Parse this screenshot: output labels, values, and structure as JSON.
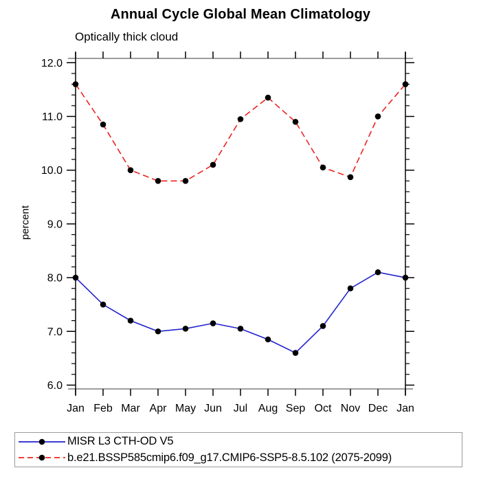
{
  "page": {
    "background": "#ffffff"
  },
  "header": {
    "title": "Annual Cycle Global Mean Climatology",
    "subtitle": "Optically thick cloud"
  },
  "axes": {
    "ylabel": "percent",
    "x_tick_labels": [
      "Jan",
      "Feb",
      "Mar",
      "Apr",
      "May",
      "Jun",
      "Jul",
      "Aug",
      "Sep",
      "Oct",
      "Nov",
      "Dec",
      "Jan"
    ],
    "y_tick_labels": [
      "6.0",
      "7.0",
      "8.0",
      "9.0",
      "10.0",
      "11.0",
      "12.0"
    ]
  },
  "legend": {
    "items": [
      {
        "label": "MISR L3 CTH-OD V5",
        "line_style": "solid",
        "color": "#2121cf",
        "marker": "filled-circle",
        "marker_color": "#000000"
      },
      {
        "label": "b.e21.BSSP585cmip6.f09_g17.CMIP6-SSP5-8.5.102 (2075-2099)",
        "line_style": "dashed",
        "color": "#ee2222",
        "marker": "filled-circle",
        "marker_color": "#000000"
      }
    ]
  },
  "colors": {
    "misr_line": "#2121cf",
    "model_line": "#ee2222",
    "marker": "#000000",
    "axis": "#000000",
    "plot_border": "#7d7d7d",
    "legend_border": "#9a9a9a"
  },
  "chart_data": {
    "type": "line",
    "title": "Annual Cycle Global Mean Climatology",
    "subtitle": "Optically thick cloud",
    "ylabel": "percent",
    "xlabel": "",
    "categories": [
      "Jan",
      "Feb",
      "Mar",
      "Apr",
      "May",
      "Jun",
      "Jul",
      "Aug",
      "Sep",
      "Oct",
      "Nov",
      "Dec",
      "Jan"
    ],
    "y_major_ticks": [
      6,
      7,
      8,
      9,
      10,
      11,
      12
    ],
    "y_tick_labels": [
      "6.0",
      "7.0",
      "8.0",
      "9.0",
      "10.0",
      "11.0",
      "12.0"
    ],
    "y_minor_step": 0.2,
    "ylim": [
      5.92,
      12.08
    ],
    "grid": false,
    "legend_position": "bottom-left-box",
    "series": [
      {
        "name": "MISR L3 CTH-OD V5",
        "color": "#2121cf",
        "line_style": "solid",
        "marker": "filled-circle",
        "marker_color": "#000000",
        "values": [
          8.0,
          7.5,
          7.2,
          7.0,
          7.05,
          7.15,
          7.05,
          6.85,
          6.6,
          7.1,
          7.8,
          8.1,
          8.0
        ]
      },
      {
        "name": "b.e21.BSSP585cmip6.f09_g17.CMIP6-SSP5-8.5.102 (2075-2099)",
        "color": "#ee2222",
        "line_style": "dashed",
        "marker": "filled-circle",
        "marker_color": "#000000",
        "values": [
          11.6,
          10.85,
          10.0,
          9.8,
          9.8,
          10.1,
          10.95,
          11.35,
          10.9,
          10.05,
          9.87,
          11.0,
          11.6
        ]
      }
    ]
  }
}
